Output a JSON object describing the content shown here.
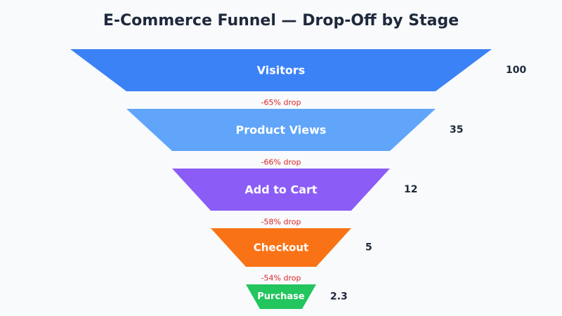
{
  "chart_data": {
    "type": "funnel",
    "title": "E-Commerce Funnel — Drop-Off by Stage",
    "stages": [
      {
        "name": "Visitors",
        "value": 100,
        "value_label": "100",
        "color": "#3b82f6"
      },
      {
        "name": "Product Views",
        "value": 35,
        "value_label": "35",
        "color": "#60a5fa"
      },
      {
        "name": "Add to Cart",
        "value": 12,
        "value_label": "12",
        "color": "#8b5cf6"
      },
      {
        "name": "Checkout",
        "value": 5,
        "value_label": "5",
        "color": "#f97316"
      },
      {
        "name": "Purchase",
        "value": 2.3,
        "value_label": "2.3",
        "color": "#22c55e"
      }
    ],
    "drops": [
      "-65% drop",
      "-66% drop",
      "-58% drop",
      "-54% drop"
    ],
    "colors": {
      "background": "#f8fafc",
      "title": "#1e293b",
      "stage_text": "#ffffff",
      "value_text": "#1e293b",
      "drop_text": "#dc2626"
    }
  }
}
